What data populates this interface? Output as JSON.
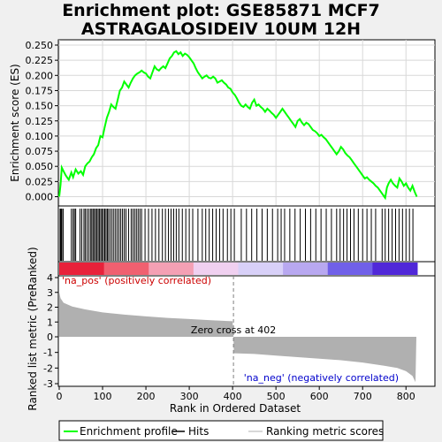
{
  "title_line1": "Enrichment plot: GSE85871 MCF7",
  "title_line2": "ASTRAGALOSIDEIV 10UM 12H",
  "chart_data": {
    "type": "line",
    "x_label": "Rank in Ordered Dataset",
    "es_panel": {
      "ylabel": "Enrichment score (ES)",
      "ylim": [
        -0.01,
        0.25
      ],
      "yticks": [
        "0.000",
        "0.025",
        "0.050",
        "0.075",
        "0.100",
        "0.125",
        "0.150",
        "0.175",
        "0.200",
        "0.225",
        "0.250"
      ],
      "ytick_values": [
        0.0,
        0.025,
        0.05,
        0.075,
        0.1,
        0.125,
        0.15,
        0.175,
        0.2,
        0.225,
        0.25
      ],
      "grid": true,
      "line_color": "#00ff00",
      "points": [
        [
          0,
          0.0
        ],
        [
          3,
          0.02
        ],
        [
          6,
          0.048
        ],
        [
          10,
          0.042
        ],
        [
          15,
          0.035
        ],
        [
          22,
          0.028
        ],
        [
          28,
          0.04
        ],
        [
          32,
          0.032
        ],
        [
          38,
          0.045
        ],
        [
          44,
          0.038
        ],
        [
          50,
          0.042
        ],
        [
          55,
          0.036
        ],
        [
          60,
          0.05
        ],
        [
          65,
          0.055
        ],
        [
          70,
          0.058
        ],
        [
          75,
          0.065
        ],
        [
          80,
          0.07
        ],
        [
          85,
          0.08
        ],
        [
          90,
          0.085
        ],
        [
          95,
          0.1
        ],
        [
          100,
          0.098
        ],
        [
          105,
          0.115
        ],
        [
          110,
          0.13
        ],
        [
          115,
          0.14
        ],
        [
          120,
          0.152
        ],
        [
          125,
          0.148
        ],
        [
          130,
          0.145
        ],
        [
          135,
          0.16
        ],
        [
          140,
          0.175
        ],
        [
          145,
          0.18
        ],
        [
          150,
          0.19
        ],
        [
          155,
          0.185
        ],
        [
          160,
          0.18
        ],
        [
          165,
          0.188
        ],
        [
          170,
          0.195
        ],
        [
          175,
          0.2
        ],
        [
          180,
          0.203
        ],
        [
          185,
          0.205
        ],
        [
          190,
          0.208
        ],
        [
          195,
          0.205
        ],
        [
          200,
          0.203
        ],
        [
          205,
          0.198
        ],
        [
          210,
          0.195
        ],
        [
          215,
          0.205
        ],
        [
          220,
          0.215
        ],
        [
          225,
          0.21
        ],
        [
          230,
          0.208
        ],
        [
          235,
          0.212
        ],
        [
          240,
          0.215
        ],
        [
          245,
          0.212
        ],
        [
          250,
          0.22
        ],
        [
          255,
          0.228
        ],
        [
          260,
          0.232
        ],
        [
          265,
          0.238
        ],
        [
          270,
          0.24
        ],
        [
          275,
          0.235
        ],
        [
          280,
          0.238
        ],
        [
          285,
          0.232
        ],
        [
          290,
          0.236
        ],
        [
          295,
          0.234
        ],
        [
          300,
          0.23
        ],
        [
          305,
          0.225
        ],
        [
          310,
          0.22
        ],
        [
          315,
          0.212
        ],
        [
          320,
          0.205
        ],
        [
          325,
          0.2
        ],
        [
          330,
          0.195
        ],
        [
          335,
          0.198
        ],
        [
          340,
          0.2
        ],
        [
          345,
          0.196
        ],
        [
          350,
          0.195
        ],
        [
          355,
          0.198
        ],
        [
          360,
          0.195
        ],
        [
          365,
          0.188
        ],
        [
          370,
          0.19
        ],
        [
          375,
          0.192
        ],
        [
          380,
          0.188
        ],
        [
          385,
          0.185
        ],
        [
          390,
          0.18
        ],
        [
          395,
          0.178
        ],
        [
          400,
          0.172
        ],
        [
          405,
          0.168
        ],
        [
          410,
          0.162
        ],
        [
          415,
          0.155
        ],
        [
          420,
          0.15
        ],
        [
          425,
          0.148
        ],
        [
          430,
          0.152
        ],
        [
          435,
          0.148
        ],
        [
          440,
          0.145
        ],
        [
          445,
          0.155
        ],
        [
          450,
          0.16
        ],
        [
          455,
          0.15
        ],
        [
          460,
          0.152
        ],
        [
          465,
          0.148
        ],
        [
          470,
          0.145
        ],
        [
          475,
          0.14
        ],
        [
          480,
          0.145
        ],
        [
          485,
          0.142
        ],
        [
          490,
          0.138
        ],
        [
          495,
          0.135
        ],
        [
          500,
          0.13
        ],
        [
          505,
          0.135
        ],
        [
          510,
          0.14
        ],
        [
          515,
          0.145
        ],
        [
          520,
          0.14
        ],
        [
          525,
          0.135
        ],
        [
          530,
          0.13
        ],
        [
          535,
          0.125
        ],
        [
          540,
          0.12
        ],
        [
          545,
          0.115
        ],
        [
          550,
          0.125
        ],
        [
          555,
          0.128
        ],
        [
          560,
          0.122
        ],
        [
          565,
          0.118
        ],
        [
          570,
          0.122
        ],
        [
          575,
          0.12
        ],
        [
          580,
          0.115
        ],
        [
          585,
          0.11
        ],
        [
          590,
          0.108
        ],
        [
          595,
          0.105
        ],
        [
          600,
          0.1
        ],
        [
          605,
          0.102
        ],
        [
          610,
          0.098
        ],
        [
          615,
          0.095
        ],
        [
          620,
          0.09
        ],
        [
          625,
          0.085
        ],
        [
          630,
          0.08
        ],
        [
          635,
          0.075
        ],
        [
          640,
          0.07
        ],
        [
          645,
          0.075
        ],
        [
          650,
          0.082
        ],
        [
          655,
          0.078
        ],
        [
          660,
          0.072
        ],
        [
          665,
          0.068
        ],
        [
          670,
          0.065
        ],
        [
          675,
          0.06
        ],
        [
          680,
          0.055
        ],
        [
          685,
          0.05
        ],
        [
          690,
          0.045
        ],
        [
          695,
          0.04
        ],
        [
          700,
          0.035
        ],
        [
          705,
          0.03
        ],
        [
          710,
          0.032
        ],
        [
          715,
          0.028
        ],
        [
          720,
          0.025
        ],
        [
          725,
          0.022
        ],
        [
          730,
          0.018
        ],
        [
          735,
          0.015
        ],
        [
          740,
          0.01
        ],
        [
          745,
          0.005
        ],
        [
          750,
          0.0
        ],
        [
          752,
          -0.002
        ],
        [
          756,
          0.015
        ],
        [
          760,
          0.022
        ],
        [
          765,
          0.028
        ],
        [
          770,
          0.022
        ],
        [
          775,
          0.018
        ],
        [
          780,
          0.015
        ],
        [
          785,
          0.03
        ],
        [
          790,
          0.025
        ],
        [
          795,
          0.018
        ],
        [
          800,
          0.022
        ],
        [
          805,
          0.015
        ],
        [
          810,
          0.01
        ],
        [
          815,
          0.018
        ],
        [
          820,
          0.008
        ],
        [
          825,
          0.0
        ]
      ]
    },
    "hits_panel": {
      "positions": [
        2,
        4,
        5,
        6,
        9,
        28,
        32,
        35,
        38,
        48,
        52,
        57,
        60,
        64,
        68,
        72,
        75,
        78,
        81,
        84,
        87,
        90,
        93,
        96,
        99,
        102,
        105,
        108,
        111,
        114,
        118,
        122,
        126,
        130,
        134,
        138,
        142,
        146,
        150,
        154,
        160,
        166,
        170,
        174,
        178,
        182,
        186,
        190,
        198,
        206,
        214,
        222,
        230,
        238,
        245,
        252,
        258,
        264,
        270,
        276,
        284,
        292,
        300,
        308,
        320,
        330,
        338,
        346,
        354,
        362,
        370,
        378,
        388,
        396,
        404,
        420,
        432,
        444,
        456,
        468,
        480,
        492,
        504,
        512,
        520,
        532,
        544,
        556,
        568,
        580,
        592,
        604,
        616,
        628,
        640,
        648,
        656,
        664,
        672,
        680,
        690,
        700,
        710,
        720,
        730,
        745,
        752,
        760,
        768,
        776,
        784,
        792,
        800,
        808,
        816
      ]
    },
    "heatmap_colors": [
      "#e8213a",
      "#f06070",
      "#f4a0b4",
      "#f0d0f0",
      "#d8d0f8",
      "#b8a8f0",
      "#7060e8",
      "#5028d8"
    ],
    "metric_panel": {
      "ylabel": "Ranked list metric (PreRanked)",
      "ylim": [
        -3,
        4
      ],
      "yticks": [
        "-3",
        "-2",
        "-1",
        "0",
        "1",
        "2",
        "3",
        "4"
      ],
      "ytick_values": [
        -3,
        -2,
        -1,
        0,
        1,
        2,
        3,
        4
      ],
      "zero_cross_rank": 402,
      "zero_cross_label": "Zero cross at 402",
      "pos_label": "'na_pos' (positively correlated)",
      "neg_label": "'na_neg' (negatively correlated)",
      "total_ranks": 826
    },
    "x_ticks": [
      "0",
      "100",
      "200",
      "300",
      "400",
      "500",
      "600",
      "700",
      "800"
    ],
    "x_tick_values": [
      0,
      100,
      200,
      300,
      400,
      500,
      600,
      700,
      800
    ],
    "xlim": [
      0,
      826
    ],
    "legend": {
      "items": [
        {
          "label": "Enrichment profile",
          "color": "#00ff00"
        },
        {
          "label": "Hits",
          "color": "#000000"
        },
        {
          "label": "Ranking metric scores",
          "color": "#b0b0b0"
        }
      ]
    }
  }
}
